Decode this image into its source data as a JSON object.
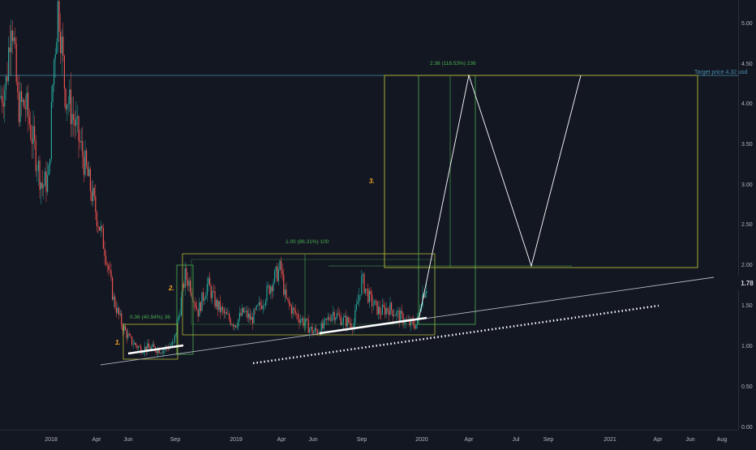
{
  "theme": {
    "background": "#131722",
    "candle_up": "#26a69a",
    "candle_down": "#ef5350",
    "label_orange": "#f5a623",
    "measure_green": "#4caf50",
    "box_yellow": "#b5b837",
    "target_line": "#4a8fb0",
    "trend_line": "#b2b5be",
    "projection_line": "#ffffff"
  },
  "annotations": {
    "wave_1": "1.",
    "wave_2": "2.",
    "wave_3": "3.",
    "measure_1": "0.36 (40.94%) 36",
    "measure_2": "1.00 (86.31%) 100",
    "measure_3": "2.36 (118.53%) 236",
    "target_label": "Target price 4.32 usd"
  },
  "price_axis": {
    "ticks": [
      "5.00",
      "4.50",
      "4.00",
      "3.50",
      "3.00",
      "2.50",
      "2.00",
      "1.50",
      "1.00",
      "0.50",
      "0.00"
    ],
    "current_price": "1.78"
  },
  "time_axis": {
    "ticks": [
      "2018",
      "Apr",
      "Jun",
      "Sep",
      "2019",
      "Apr",
      "Jun",
      "Sep",
      "2020",
      "Apr",
      "Jul",
      "Sep",
      "2021",
      "Apr",
      "Jun",
      "Aug"
    ]
  }
}
